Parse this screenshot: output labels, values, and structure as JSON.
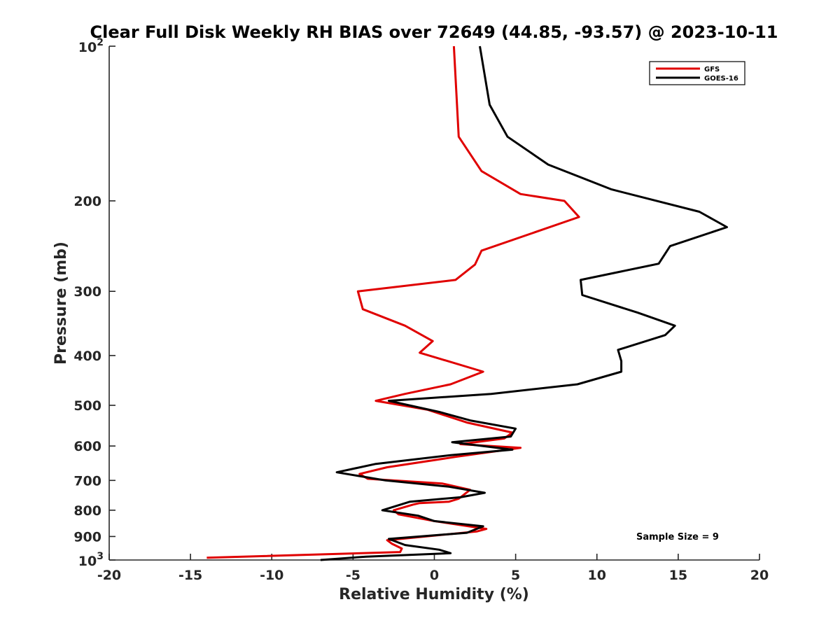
{
  "chart_data": {
    "type": "line",
    "title": "Clear Full Disk Weekly RH BIAS over 72649 (44.85, -93.57) @ 2023-10-11",
    "xlabel": "Relative Humidity (%)",
    "ylabel": "Pressure (mb)",
    "xlim": [
      -20,
      20
    ],
    "ylim": [
      100,
      1000
    ],
    "y_scale": "log",
    "y_reversed": true,
    "grid": false,
    "legend_placement": "top-right",
    "x_ticks": [
      "-20",
      "-15",
      "-10",
      "-5",
      "0",
      "5",
      "10",
      "15",
      "20"
    ],
    "y_ticks": [
      {
        "value": 200,
        "label": "200"
      },
      {
        "value": 300,
        "label": "300"
      },
      {
        "value": 400,
        "label": "400"
      },
      {
        "value": 500,
        "label": "500"
      },
      {
        "value": 600,
        "label": "600"
      },
      {
        "value": 700,
        "label": "700"
      },
      {
        "value": 800,
        "label": "800"
      },
      {
        "value": 900,
        "label": "900"
      }
    ],
    "y_decade_ticks": [
      {
        "value": 100,
        "base": "10",
        "exp": "2"
      },
      {
        "value": 1000,
        "base": "10",
        "exp": "3"
      }
    ],
    "annotation": "Sample Size = 9",
    "series": [
      {
        "name": "GFS",
        "color": "#e00000",
        "points": [
          [
            1.2,
            100
          ],
          [
            1.5,
            150
          ],
          [
            2.9,
            175
          ],
          [
            5.3,
            194
          ],
          [
            8.0,
            200
          ],
          [
            8.9,
            215
          ],
          [
            2.9,
            250
          ],
          [
            2.5,
            266
          ],
          [
            1.3,
            285
          ],
          [
            -4.7,
            300
          ],
          [
            -4.4,
            325
          ],
          [
            -1.8,
            350
          ],
          [
            -0.1,
            375
          ],
          [
            -0.9,
            395
          ],
          [
            3.0,
            430
          ],
          [
            1.0,
            455
          ],
          [
            -1.8,
            475
          ],
          [
            -3.6,
            490
          ],
          [
            -0.4,
            510
          ],
          [
            2.0,
            540
          ],
          [
            4.8,
            565
          ],
          [
            4.3,
            580
          ],
          [
            1.6,
            595
          ],
          [
            5.3,
            605
          ],
          [
            1.3,
            630
          ],
          [
            -2.9,
            660
          ],
          [
            -4.6,
            680
          ],
          [
            -4.1,
            695
          ],
          [
            0.5,
            710
          ],
          [
            2.2,
            730
          ],
          [
            1.5,
            760
          ],
          [
            0.9,
            770
          ],
          [
            -0.9,
            775
          ],
          [
            -1.3,
            780
          ],
          [
            -2.5,
            800
          ],
          [
            -2.2,
            815
          ],
          [
            0.0,
            840
          ],
          [
            3.2,
            870
          ],
          [
            2.6,
            880
          ],
          [
            -2.9,
            915
          ],
          [
            -2.6,
            930
          ],
          [
            -2.0,
            950
          ],
          [
            -2.1,
            965
          ],
          [
            -14.0,
            990
          ]
        ]
      },
      {
        "name": "GOES-16",
        "color": "#000000",
        "points": [
          [
            2.8,
            100
          ],
          [
            3.4,
            130
          ],
          [
            4.5,
            150
          ],
          [
            7.0,
            170
          ],
          [
            10.9,
            190
          ],
          [
            16.3,
            210
          ],
          [
            18.0,
            225
          ],
          [
            14.5,
            245
          ],
          [
            13.8,
            265
          ],
          [
            9.0,
            285
          ],
          [
            9.1,
            305
          ],
          [
            12.5,
            330
          ],
          [
            14.8,
            350
          ],
          [
            14.2,
            365
          ],
          [
            11.3,
            390
          ],
          [
            11.5,
            410
          ],
          [
            11.5,
            430
          ],
          [
            8.8,
            455
          ],
          [
            3.5,
            475
          ],
          [
            -2.8,
            490
          ],
          [
            0.3,
            515
          ],
          [
            2.2,
            535
          ],
          [
            5.0,
            555
          ],
          [
            4.7,
            575
          ],
          [
            1.1,
            590
          ],
          [
            4.8,
            610
          ],
          [
            1.0,
            625
          ],
          [
            -3.6,
            650
          ],
          [
            -6.0,
            675
          ],
          [
            -3.0,
            700
          ],
          [
            0.9,
            720
          ],
          [
            3.1,
            740
          ],
          [
            1.6,
            755
          ],
          [
            -1.5,
            770
          ],
          [
            -3.2,
            800
          ],
          [
            -1.0,
            820
          ],
          [
            0.0,
            840
          ],
          [
            3.0,
            860
          ],
          [
            2.0,
            885
          ],
          [
            -2.8,
            910
          ],
          [
            -1.8,
            935
          ],
          [
            0.3,
            955
          ],
          [
            1.0,
            970
          ],
          [
            -4.2,
            985
          ],
          [
            -7.0,
            1000
          ]
        ]
      }
    ]
  }
}
